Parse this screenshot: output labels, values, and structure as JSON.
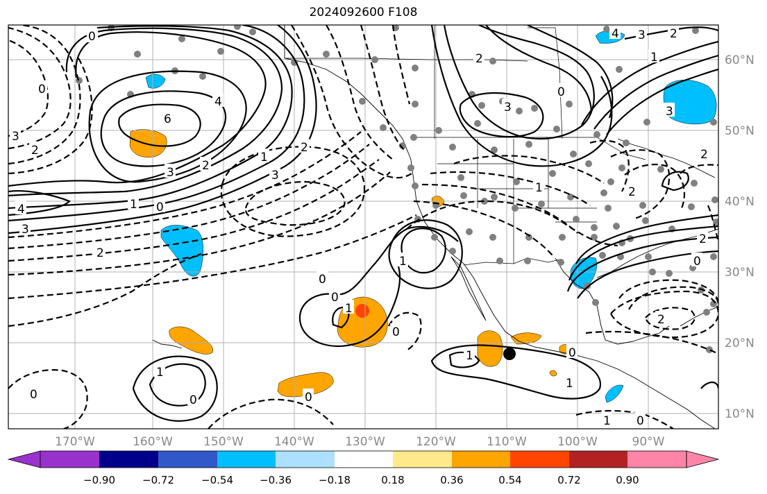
{
  "title": "2024092600 F108",
  "longitude_labels": [
    "170°W",
    "160°W",
    "150°W",
    "140°W",
    "130°W",
    "120°W",
    "110°W",
    "100°W",
    "90°W"
  ],
  "latitude_labels": [
    "60°N",
    "50°N",
    "40°N",
    "30°N",
    "20°N",
    "10°N"
  ],
  "colorbar": {
    "tick_labels": [
      "−0.90",
      "−0.72",
      "−0.54",
      "−0.36",
      "−0.18",
      "0.18",
      "0.36",
      "0.54",
      "0.72",
      "0.90"
    ],
    "colors": [
      "#9932cc",
      "#00008b",
      "#3158c9",
      "#00bfff",
      "#addfff",
      "#ffffff",
      "#ffe98a",
      "#ffa500",
      "#ff4500",
      "#b22222",
      "#ff85a8"
    ]
  },
  "contour_labels": {
    "c0a": "0",
    "c4": "4",
    "c6": "6",
    "c3a": "3",
    "c2a": "2",
    "c1a": "1",
    "c0b": "0",
    "c2b": "2",
    "c3b": "3",
    "c2c": "2",
    "c0c": "0",
    "c3c": "3",
    "c4b": "4",
    "c3d": "3",
    "c2d": "2",
    "c1b": "1",
    "c2e": "2",
    "c1c": "1",
    "c0d": "0",
    "c3e": "3",
    "c1d": "1",
    "c0e": "0",
    "c1e": "1",
    "c0f": "0",
    "c1f": "1",
    "c0g": "0",
    "c2f": "2",
    "c0h": "0",
    "c1g": "1",
    "c0i": "0",
    "c0j": "0",
    "c1h": "1",
    "c0k": "0",
    "c1i": "1",
    "c0l": "0",
    "c2g": "2",
    "c3f": "3",
    "c2h": "2",
    "c2i": "2",
    "c0m": "0",
    "c1j": "1",
    "c4c": "4",
    "c2j": "2",
    "c3g": "3"
  }
}
